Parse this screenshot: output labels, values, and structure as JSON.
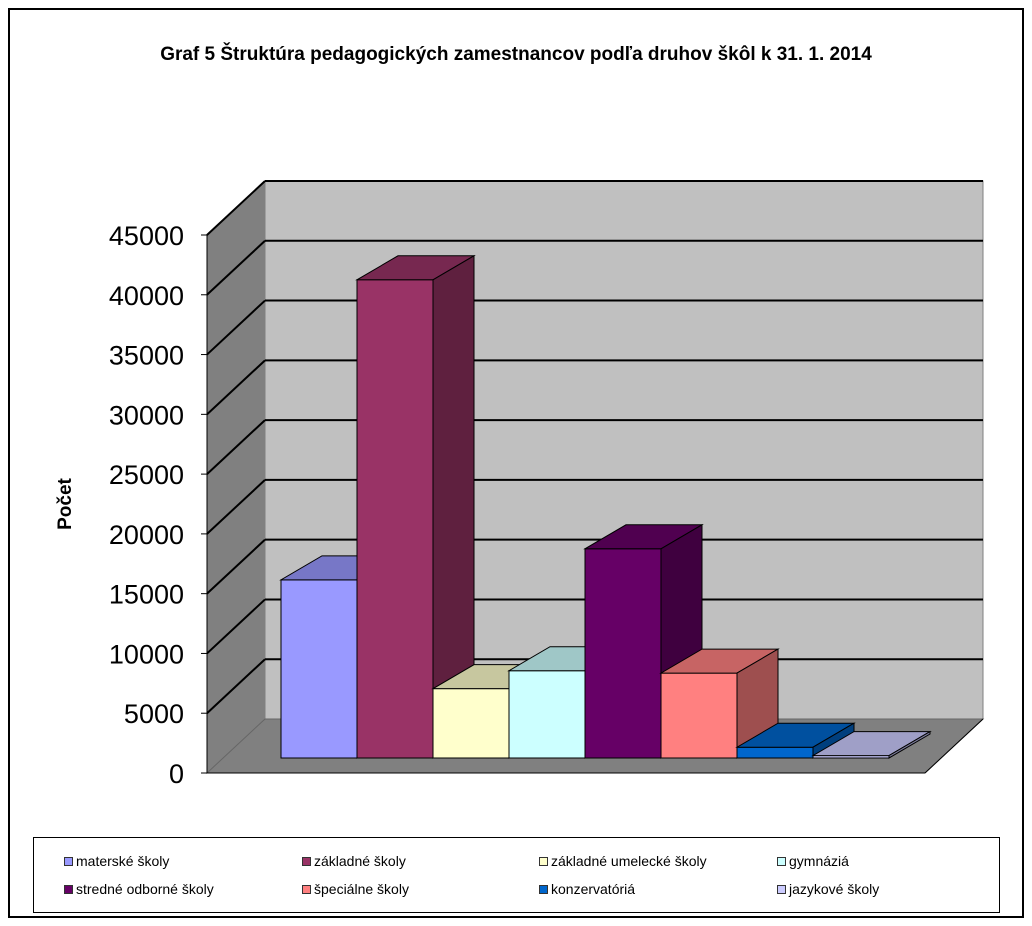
{
  "chart_data": {
    "type": "bar",
    "title": "Graf 5 Štruktúra pedagogických zamestnancov podľa druhov škôl  k 31. 1. 2014",
    "ylabel": "Počet",
    "xlabel": "",
    "ylim": [
      0,
      45000
    ],
    "yticks": [
      "0",
      "5000",
      "10000",
      "15000",
      "20000",
      "25000",
      "30000",
      "35000",
      "40000",
      "45000"
    ],
    "grid": true,
    "legend_position": "bottom",
    "series": [
      {
        "name": "materské školy",
        "value": 14900,
        "color": "#9999FF"
      },
      {
        "name": "základné školy",
        "value": 40000,
        "color": "#993366"
      },
      {
        "name": "základné umelecké školy",
        "value": 5800,
        "color": "#FFFFCC"
      },
      {
        "name": "gymnáziá",
        "value": 7300,
        "color": "#CCFFFF"
      },
      {
        "name": "stredné odborné školy",
        "value": 17500,
        "color": "#660066"
      },
      {
        "name": "špeciálne školy",
        "value": 7100,
        "color": "#FF8080"
      },
      {
        "name": "konzervatóriá",
        "value": 900,
        "color": "#0066CC"
      },
      {
        "name": "jazykové školy",
        "value": 200,
        "color": "#CCCCFF"
      }
    ]
  }
}
